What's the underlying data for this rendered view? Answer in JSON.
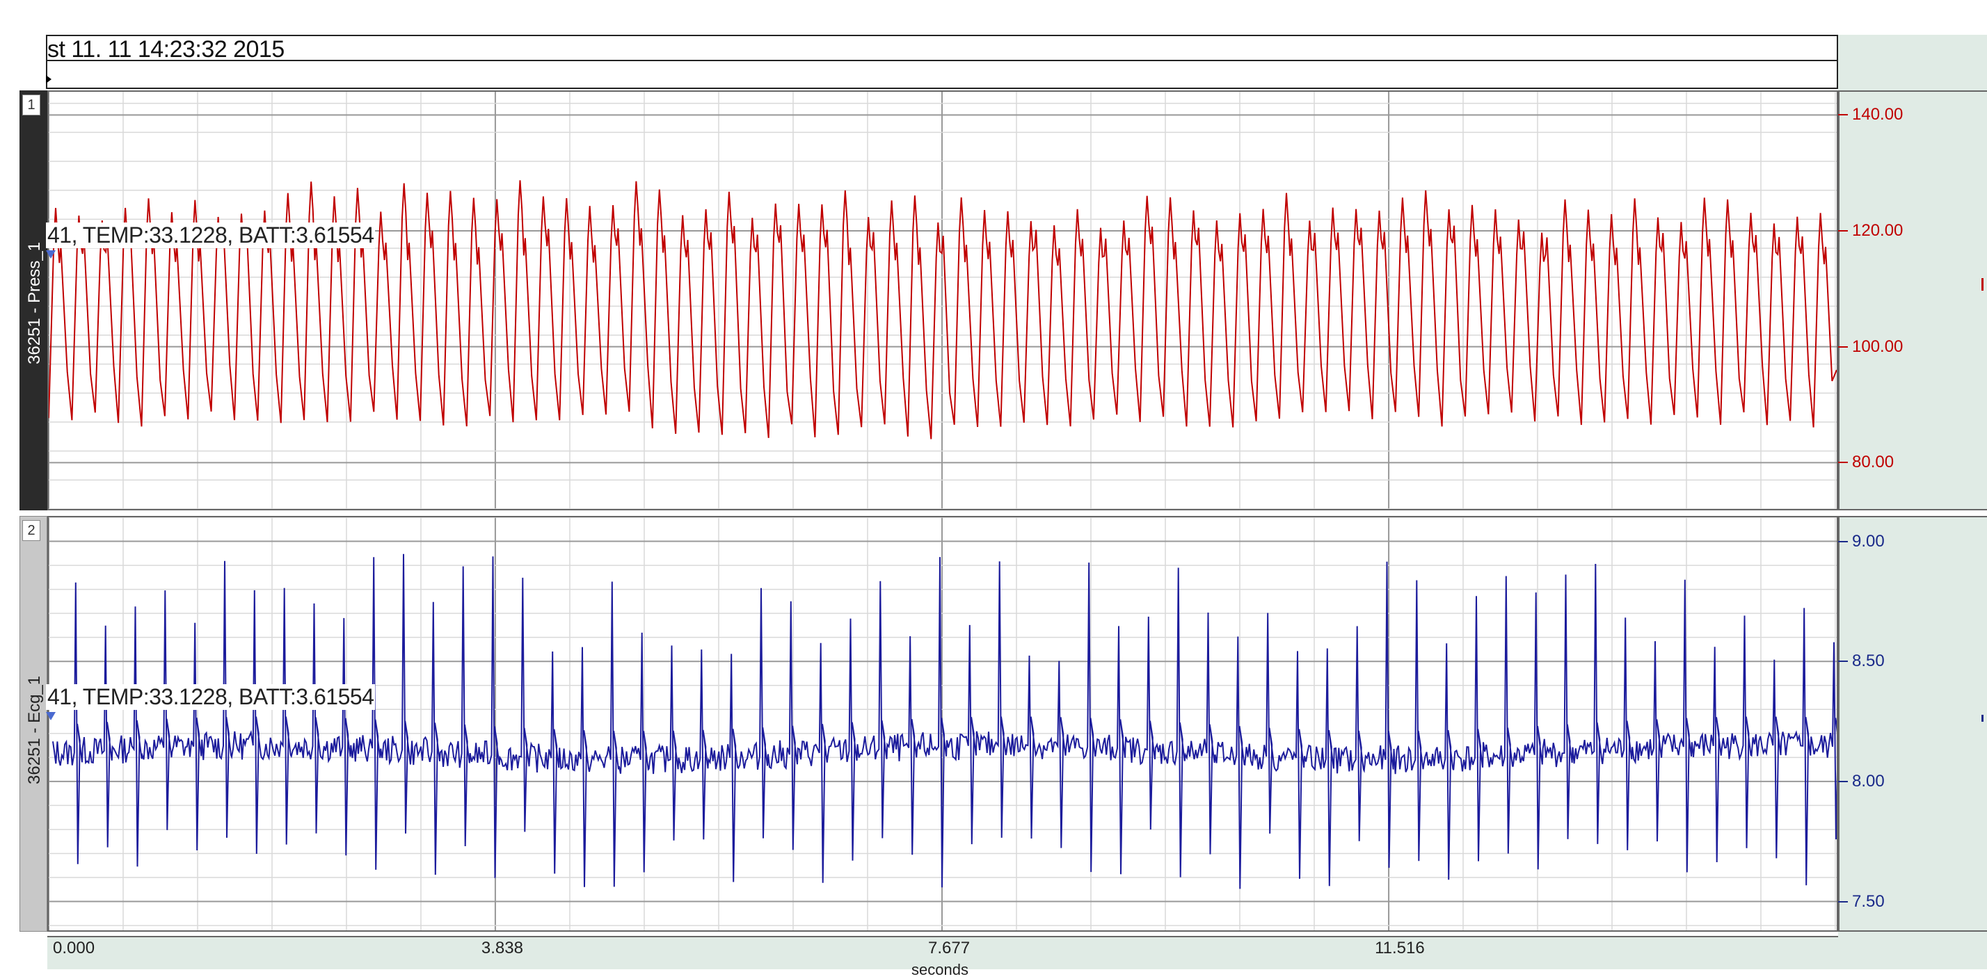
{
  "header": {
    "timestamp": "st 11. 11 14:23:32 2015"
  },
  "panels": [
    {
      "number": "1",
      "channel_label": "36251 - Press_1",
      "annotation": "41, TEMP:33.1228, BATT:3.61554",
      "y_ticks": [
        "140.00",
        "120.00",
        "100.00",
        "80.00"
      ],
      "y_values": [
        140,
        120,
        100,
        80
      ],
      "trace_color": "#c00000",
      "sidebar_color": "#2b2b2b"
    },
    {
      "number": "2",
      "channel_label": "36251 - Ecg_1",
      "annotation": "41, TEMP:33.1228, BATT:3.61554",
      "y_ticks": [
        "9.00",
        "8.50",
        "8.00",
        "7.50"
      ],
      "y_values": [
        9.0,
        8.5,
        8.0,
        7.5
      ],
      "trace_color": "#1c1c9c",
      "sidebar_color": "#c8c8c8"
    }
  ],
  "x_axis": {
    "ticks": [
      "0.000",
      "3.838",
      "7.677",
      "11.516"
    ],
    "tick_values": [
      0.0,
      3.838,
      7.677,
      11.516
    ],
    "title": "seconds"
  },
  "chart_data": [
    {
      "type": "line",
      "series": [
        {
          "values_range": [
            82,
            129
          ],
          "cycle_count": 77
        }
      ],
      "x_range": [
        0,
        15.3
      ],
      "ylim": [
        72,
        144
      ],
      "grid": true
    },
    {
      "type": "line",
      "series": [
        {
          "values_range": [
            7.55,
            8.95
          ],
          "beat_count": 60
        }
      ],
      "x_range": [
        0,
        15.3
      ],
      "ylim": [
        7.38,
        9.1
      ],
      "grid": true
    }
  ],
  "colors": {
    "axis_bg": "#e0ebe5",
    "grid_major": "#999999",
    "grid_minor": "#d9d9d9"
  }
}
